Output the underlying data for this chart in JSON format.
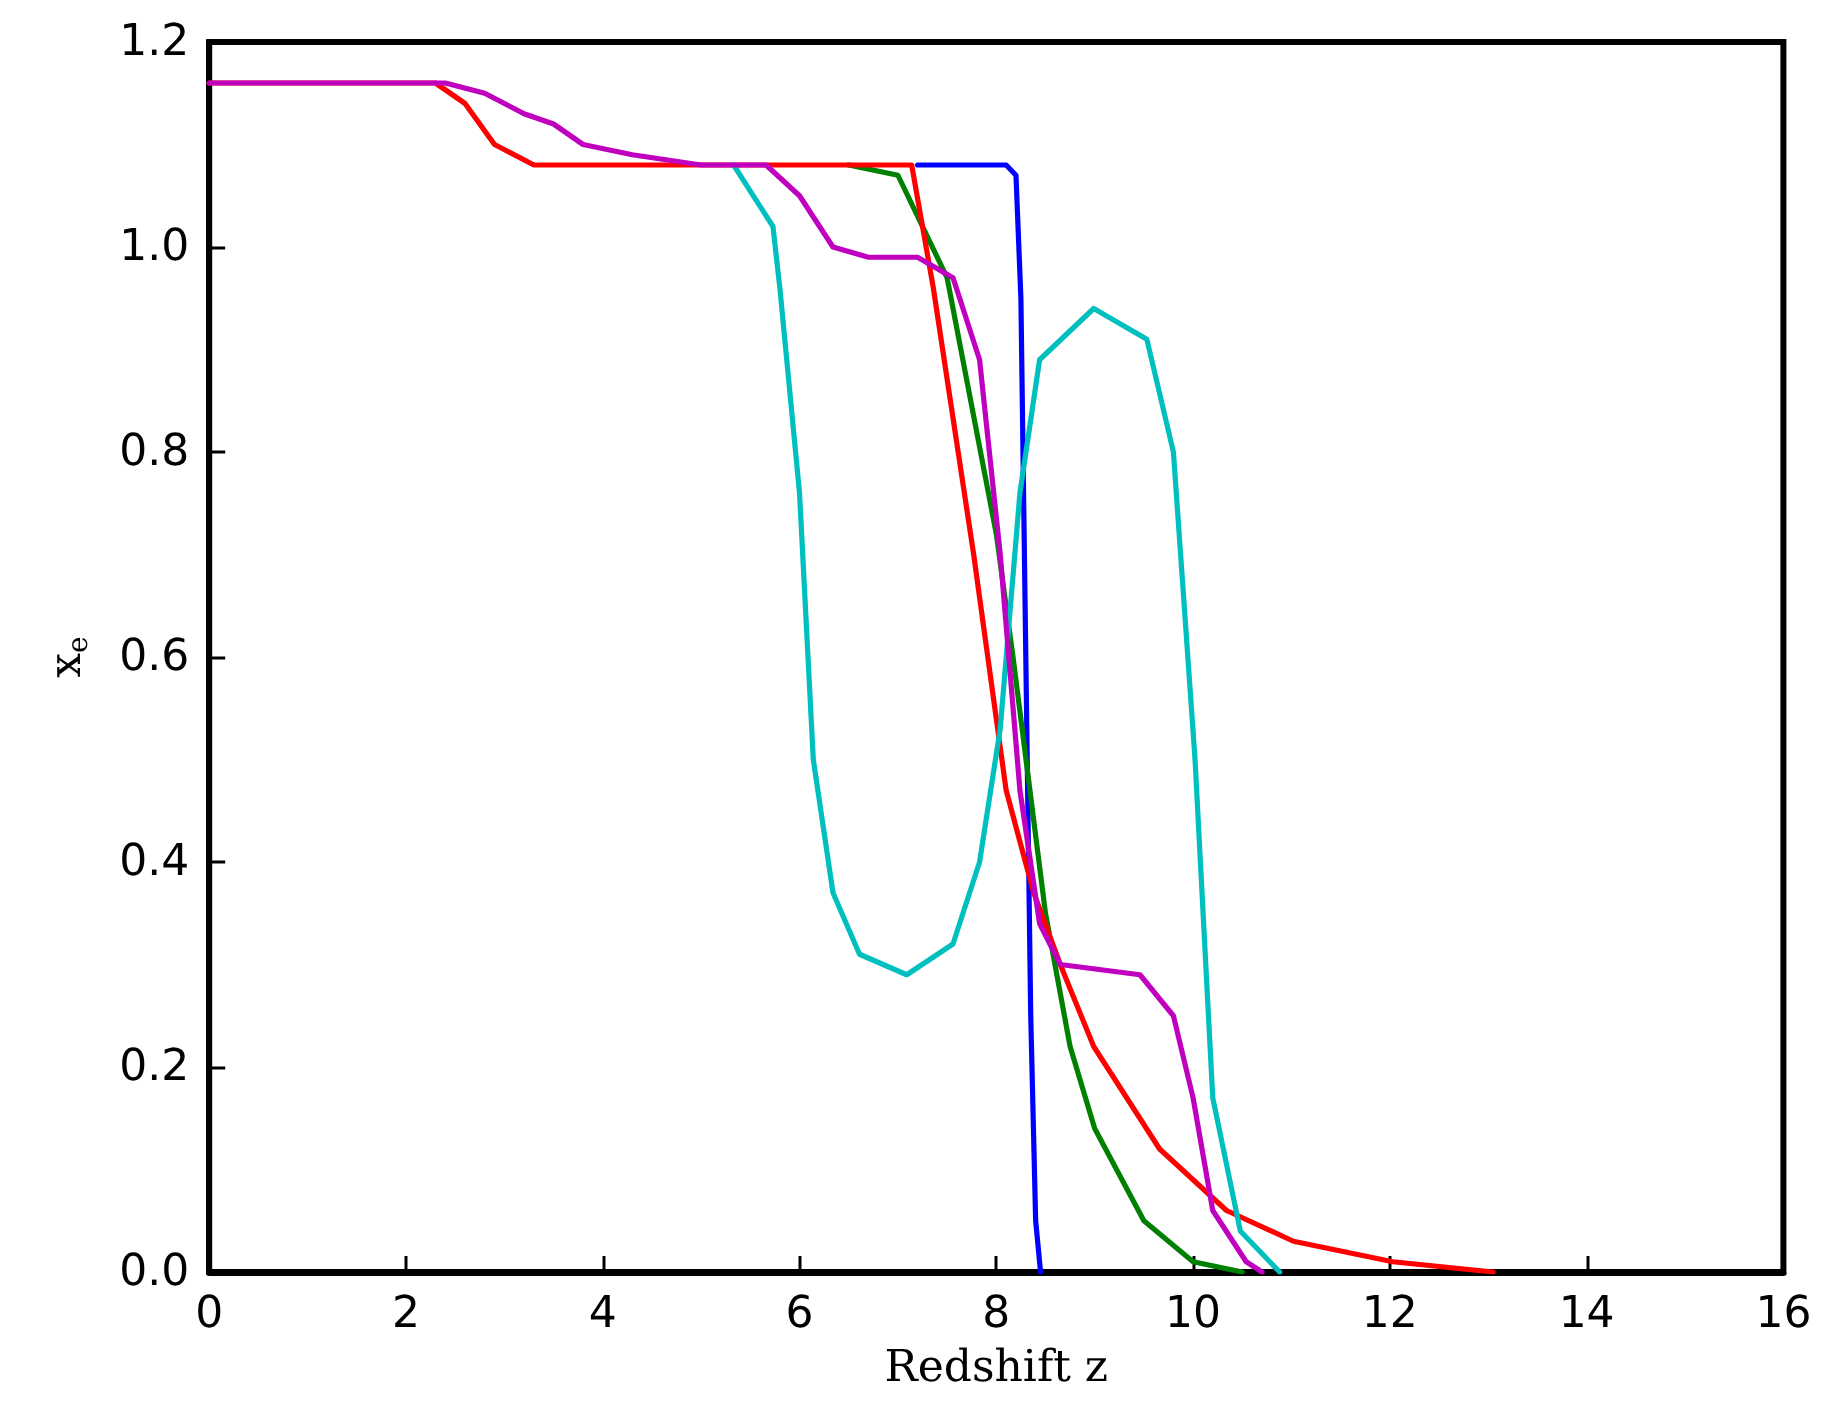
{
  "chart_data": {
    "type": "line",
    "xlabel": "Redshift z",
    "ylabel": "x$_{e}$",
    "xlim": [
      0,
      16
    ],
    "xticks": [
      0,
      2,
      4,
      6,
      8,
      10,
      12,
      14,
      16
    ],
    "ylim": [
      0,
      1.2
    ],
    "yticks": [
      {
        "value": 0,
        "label": "0.0"
      },
      {
        "value": 0.2,
        "label": "0.2"
      },
      {
        "value": 0.4,
        "label": "0.4"
      },
      {
        "value": 0.6,
        "label": "0.6"
      },
      {
        "value": 0.8,
        "label": "0.8"
      },
      {
        "value": 1,
        "label": "1.0"
      },
      {
        "value": 1.2,
        "label": "1.2"
      }
    ],
    "grid": false,
    "marker": "none",
    "line_style": "solid",
    "series": [
      {
        "color": "#0000ff",
        "x": [
          7.2,
          8.1,
          8.2,
          8.25,
          8.3,
          8.35,
          8.4,
          8.45
        ],
        "values": [
          1.08,
          1.08,
          1.07,
          0.95,
          0.6,
          0.25,
          0.05,
          0
        ]
      },
      {
        "color": "#008000",
        "x": [
          6.5,
          7,
          7.5,
          8,
          8.17,
          8.5,
          8.75,
          9,
          9.5,
          10,
          10.5
        ],
        "values": [
          1.08,
          1.07,
          0.97,
          0.72,
          0.6,
          0.35,
          0.22,
          0.14,
          0.05,
          0.01,
          0
        ]
      },
      {
        "color": "#ff0000",
        "x": [
          0,
          2.3,
          2.6,
          2.9,
          3.3,
          7.14,
          7.36,
          7.77,
          8.1,
          8.38,
          8.65,
          8.99,
          9.66,
          10.34,
          11.02,
          12.03,
          13.05
        ],
        "values": [
          1.16,
          1.16,
          1.14,
          1.1,
          1.08,
          1.08,
          0.96,
          0.7,
          0.47,
          0.37,
          0.3,
          0.22,
          0.12,
          0.06,
          0.03,
          0.01,
          0
        ]
      },
      {
        "color": "#00bfbf",
        "x": [
          5.33,
          5.73,
          5.8,
          6,
          6.14,
          6.34,
          6.61,
          7.09,
          7.56,
          7.83,
          8.04,
          8.24,
          8.44,
          8.99,
          9.53,
          9.8,
          10.02,
          10.2,
          10.48,
          10.88
        ],
        "values": [
          1.08,
          1.02,
          0.96,
          0.76,
          0.5,
          0.37,
          0.31,
          0.29,
          0.32,
          0.4,
          0.53,
          0.76,
          0.89,
          0.94,
          0.91,
          0.8,
          0.5,
          0.17,
          0.04,
          0
        ]
      },
      {
        "color": "#bf00bf",
        "x": [
          0,
          2.4,
          2.8,
          3.2,
          3.5,
          3.8,
          4.3,
          5,
          5.66,
          6,
          6.34,
          6.7,
          7.2,
          7.56,
          7.83,
          8.04,
          8.24,
          8.44,
          8.65,
          9.46,
          9.8,
          10,
          10.2,
          10.54,
          10.7
        ],
        "values": [
          1.16,
          1.16,
          1.15,
          1.13,
          1.12,
          1.1,
          1.09,
          1.08,
          1.08,
          1.05,
          1.0,
          0.99,
          0.99,
          0.97,
          0.89,
          0.7,
          0.47,
          0.34,
          0.3,
          0.29,
          0.25,
          0.17,
          0.06,
          0.01,
          0
        ]
      }
    ]
  }
}
